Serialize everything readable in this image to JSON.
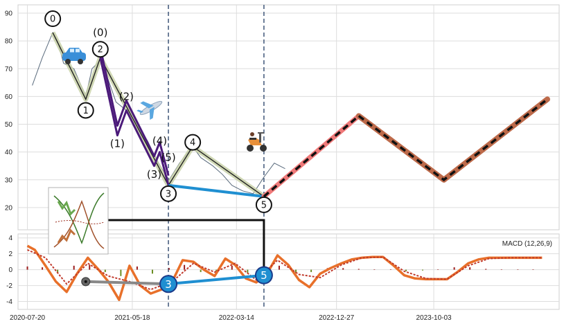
{
  "chart_data": [
    {
      "type": "line",
      "panel": "price",
      "title": "",
      "xlabel": "",
      "ylabel": "",
      "x_ticks": [
        "2020-07-20",
        "2021-05-18",
        "2022-03-14",
        "2022-12-27",
        "2023-10-03"
      ],
      "y_ticks": [
        20,
        30,
        40,
        50,
        60,
        70,
        80,
        90
      ],
      "ylim": [
        12,
        93
      ],
      "xlim": [
        "2020-06-23",
        "2024-09-28"
      ],
      "grid": true,
      "series": [
        {
          "role": "price",
          "color": "#5a6b7d",
          "x": [
            "2020-08-03",
            "2020-09-01",
            "2020-10-01",
            "2020-10-15",
            "2020-11-01",
            "2020-12-01",
            "2021-01-04",
            "2021-01-22",
            "2021-02-15",
            "2021-03-10",
            "2021-04-01",
            "2021-05-01",
            "2021-06-01",
            "2021-07-01",
            "2021-08-01",
            "2021-09-01",
            "2021-10-01",
            "2021-11-08",
            "2021-12-01",
            "2022-01-05",
            "2022-02-01",
            "2022-03-01",
            "2022-04-01",
            "2022-05-01",
            "2022-06-01",
            "2022-07-01",
            "2022-08-01"
          ],
          "values": [
            64,
            74,
            83,
            80,
            72,
            70,
            60,
            70,
            73,
            66,
            58,
            55,
            50,
            44,
            36,
            30,
            36,
            42,
            38,
            35,
            32,
            28,
            26,
            25,
            31,
            36,
            34
          ]
        },
        {
          "role": "primary-wave",
          "color": "#c8d1a8",
          "x": [
            "2020-10-01",
            "2021-01-04",
            "2021-02-15",
            "2021-08-30",
            "2021-11-08",
            "2022-06-01"
          ],
          "values": [
            83,
            59,
            74,
            28,
            42,
            24
          ]
        },
        {
          "role": "sub-wave",
          "color": "#4b1a7a",
          "x": [
            "2021-02-15",
            "2021-04-05",
            "2021-05-01",
            "2021-07-20",
            "2021-08-05",
            "2021-08-30"
          ],
          "values": [
            74,
            46,
            55,
            35,
            40,
            28
          ]
        },
        {
          "role": "trend-line",
          "color": "#1f8fd1",
          "x": [
            "2021-08-30",
            "2022-06-01"
          ],
          "values": [
            28,
            24
          ]
        },
        {
          "role": "forecast-1",
          "color": "#f07a7a",
          "x": [
            "2022-06-01",
            "2023-03-01"
          ],
          "values": [
            24,
            53
          ]
        },
        {
          "role": "forecast-2",
          "color": "#bd6a4a",
          "x": [
            "2023-03-01",
            "2023-11-01",
            "2024-08-25"
          ],
          "values": [
            53,
            30,
            59
          ]
        }
      ],
      "vlines": [
        "2021-08-30",
        "2022-06-01"
      ],
      "wave_labels": [
        {
          "text": "0",
          "x": "2020-10-01",
          "y": 88,
          "circled": true
        },
        {
          "text": "(0)",
          "x": "2021-02-15",
          "y": 83,
          "circled": false
        },
        {
          "text": "2",
          "x": "2021-02-15",
          "y": 77,
          "circled": true
        },
        {
          "text": "1",
          "x": "2021-01-04",
          "y": 55,
          "circled": true
        },
        {
          "text": "(2)",
          "x": "2021-05-01",
          "y": 60,
          "circled": false
        },
        {
          "text": "(1)",
          "x": "2021-04-05",
          "y": 43,
          "circled": false
        },
        {
          "text": "(4)",
          "x": "2021-08-05",
          "y": 44,
          "circled": false
        },
        {
          "text": "(5)",
          "x": "2021-08-30",
          "y": 38,
          "circled": false
        },
        {
          "text": "(3)",
          "x": "2021-07-20",
          "y": 32,
          "circled": false
        },
        {
          "text": "4",
          "x": "2021-11-08",
          "y": 43.5,
          "circled": true
        },
        {
          "text": "3",
          "x": "2021-08-30",
          "y": 25,
          "circled": true
        },
        {
          "text": "5",
          "x": "2022-06-01",
          "y": 21,
          "circled": true
        }
      ],
      "icons": [
        "car-icon",
        "airplane-icon",
        "scooter-icon",
        "wave-inset-icon"
      ]
    },
    {
      "type": "line",
      "panel": "macd",
      "title": "MACD (12,26,9)",
      "y_ticks": [
        4,
        2,
        0,
        -2,
        -4
      ],
      "ylim": [
        -5,
        4.5
      ],
      "grid": true,
      "series": [
        {
          "role": "macd",
          "color": "#e8702a",
          "x": [
            "2020-07-20",
            "2020-08-10",
            "2020-09-10",
            "2020-10-10",
            "2020-11-10",
            "2020-12-10",
            "2021-01-10",
            "2021-02-10",
            "2021-03-10",
            "2021-04-10",
            "2021-05-10",
            "2021-06-10",
            "2021-07-10",
            "2021-08-10",
            "2021-09-10",
            "2021-10-10",
            "2021-11-10",
            "2021-12-10",
            "2022-01-10",
            "2022-02-10",
            "2022-03-10",
            "2022-04-10",
            "2022-05-10",
            "2022-06-10",
            "2022-07-10",
            "2022-08-10",
            "2022-09-10",
            "2022-10-10",
            "2022-11-10",
            "2022-12-10",
            "2023-01-10",
            "2023-02-10",
            "2023-03-10",
            "2023-04-10",
            "2023-05-10",
            "2023-06-10",
            "2023-07-10",
            "2023-08-10",
            "2023-09-10",
            "2023-10-10",
            "2023-11-10",
            "2023-12-10",
            "2024-01-10",
            "2024-02-10",
            "2024-03-10",
            "2024-04-10",
            "2024-05-10",
            "2024-06-10",
            "2024-07-10",
            "2024-08-10"
          ],
          "values": [
            3,
            2.5,
            0.5,
            -1.5,
            -2.8,
            -0.5,
            1.5,
            0,
            -1.5,
            -3.8,
            0.5,
            -2,
            -3,
            -2.5,
            -1.5,
            1.2,
            1,
            0,
            -0.8,
            1.4,
            0.6,
            -1.1,
            -1.6,
            -0.5,
            1.8,
            0.6,
            -1.3,
            -2.2,
            -0.5,
            0.2,
            0.8,
            1.3,
            1.5,
            1.6,
            1.6,
            0.5,
            -0.7,
            -1.1,
            -1.2,
            -1.2,
            -1.2,
            -0.3,
            0.8,
            1.3,
            1.5,
            1.5,
            1.5,
            1.5,
            1.5,
            1.5
          ]
        },
        {
          "role": "signal",
          "color": "#c0392b",
          "x": [
            "2020-07-20",
            "2020-09-10",
            "2020-11-10",
            "2021-01-10",
            "2021-03-10",
            "2021-05-10",
            "2021-07-10",
            "2021-09-10",
            "2021-11-10",
            "2022-01-10",
            "2022-03-10",
            "2022-05-10",
            "2022-07-10",
            "2022-09-10",
            "2022-11-10",
            "2023-01-10",
            "2023-03-10",
            "2023-05-10",
            "2023-07-10",
            "2023-09-10",
            "2023-11-10",
            "2024-01-10",
            "2024-03-10",
            "2024-05-10",
            "2024-08-10"
          ],
          "values": [
            2.5,
            1.5,
            -1.8,
            0.8,
            -0.8,
            -1.5,
            -2.5,
            -1.5,
            0.8,
            -0.3,
            0.8,
            -1.3,
            1.2,
            -0.6,
            -1,
            0.6,
            1.5,
            1.6,
            -0.2,
            -1.1,
            -1.2,
            0.5,
            1.4,
            1.5,
            1.5
          ]
        },
        {
          "role": "histogram",
          "color_pos": "#9b1b1b",
          "color_neg": "#6b8e23",
          "x": [
            "2020-07-20",
            "2020-09-01",
            "2020-10-15",
            "2020-12-01",
            "2021-01-15",
            "2021-03-01",
            "2021-04-15",
            "2021-06-01",
            "2021-07-15",
            "2021-09-01",
            "2021-10-15",
            "2021-12-01",
            "2022-01-15",
            "2022-03-01",
            "2022-04-15",
            "2022-06-01",
            "2022-07-15",
            "2022-09-01",
            "2022-10-15",
            "2022-12-01",
            "2023-01-15",
            "2023-03-01",
            "2023-04-15",
            "2023-06-01",
            "2023-07-15",
            "2023-09-01",
            "2023-10-15",
            "2023-12-01",
            "2024-01-15",
            "2024-03-01",
            "2024-04-15",
            "2024-06-01",
            "2024-07-15"
          ],
          "values": [
            0.4,
            0.3,
            -0.4,
            0.5,
            0.6,
            -0.3,
            -0.8,
            0.4,
            -0.5,
            0.2,
            0.6,
            -0.3,
            -0.3,
            0.5,
            -0.4,
            0.4,
            0.5,
            -0.4,
            -0.3,
            0.2,
            0.2,
            0.1,
            0.05,
            0.05,
            -0.2,
            -0.1,
            0.05,
            0.3,
            0.3,
            0.1,
            0.05,
            0.05,
            0.05
          ]
        },
        {
          "role": "divergence-gray",
          "color": "#888888",
          "x": [
            "2021-01-04",
            "2021-08-30"
          ],
          "values": [
            -1.5,
            -1.8
          ]
        },
        {
          "role": "divergence-blue",
          "color": "#1f8fd1",
          "x": [
            "2021-08-30",
            "2022-06-01"
          ],
          "values": [
            -1.8,
            -0.7
          ]
        }
      ],
      "wave_labels": [
        {
          "text": "3",
          "x": "2021-08-30",
          "y": -1.8
        },
        {
          "text": "5",
          "x": "2022-06-01",
          "y": -0.7
        }
      ],
      "connector": {
        "from": "2021-01-15",
        "to": "2022-06-01"
      }
    }
  ]
}
